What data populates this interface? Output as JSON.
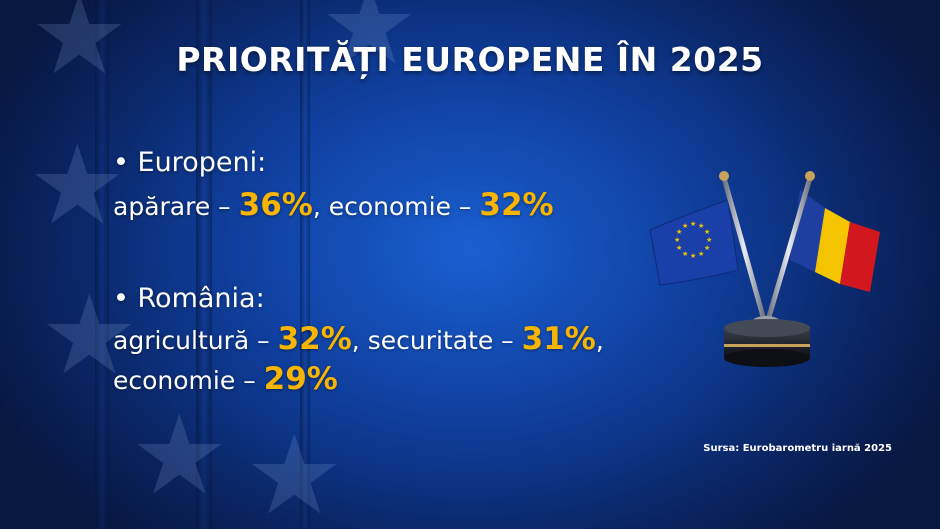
{
  "title": "PRIORITĂȚI EUROPENE ÎN 2025",
  "europeni": {
    "heading": "• Europeni:",
    "items": [
      {
        "label": "apărare – ",
        "value": "36%",
        "sep": ", "
      },
      {
        "label": "economie – ",
        "value": "32%",
        "sep": ""
      }
    ]
  },
  "romania": {
    "heading": "• România:",
    "items": [
      {
        "label": "agricultură – ",
        "value": "32%",
        "sep": ", "
      },
      {
        "label": "securitate – ",
        "value": "31%",
        "sep": ","
      },
      {
        "label": "economie – ",
        "value": "29%",
        "sep": ""
      }
    ]
  },
  "source": "Sursa: Eurobarometru iarnă 2025",
  "colors": {
    "highlight": "#f7b500",
    "background": "#0f3f9e",
    "eu_flag": "#1a3fa8",
    "ro_blue": "#1f3fa0",
    "ro_yellow": "#f4c400",
    "ro_red": "#d3171f"
  },
  "icons": {
    "flags": "eu-and-romania-desk-flags-icon",
    "background_stars": "eu-star-icon"
  }
}
